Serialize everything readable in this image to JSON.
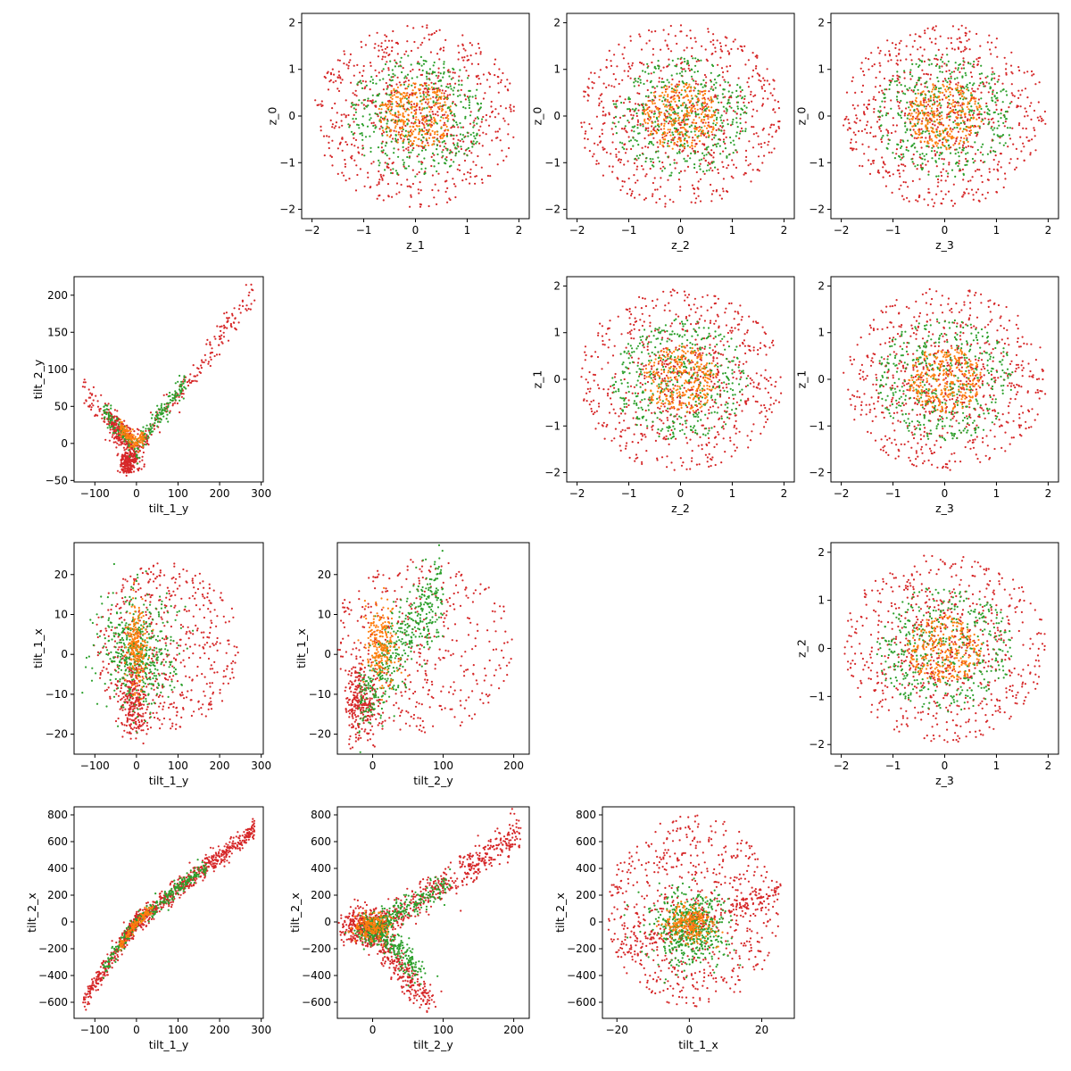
{
  "colors": {
    "inner": "#ff7f0e",
    "middle": "#2ca02c",
    "outer": "#d62728",
    "axes": "#000000",
    "background": "#ffffff"
  },
  "chart_data": [
    {
      "type": "scatter",
      "panel": "z_0 vs z_1",
      "xlabel": "z_1",
      "ylabel": "z_0",
      "kind": "rings",
      "seed": 11,
      "xlim": [
        -2.2,
        2.2
      ],
      "ylim": [
        -2.2,
        2.2
      ],
      "xticks": [
        -2,
        -1,
        0,
        1,
        2
      ],
      "yticks": [
        -2,
        -1,
        0,
        1,
        2
      ],
      "grid": false
    },
    {
      "type": "scatter",
      "panel": "z_0 vs z_2",
      "xlabel": "z_2",
      "ylabel": "z_0",
      "kind": "rings",
      "seed": 23,
      "xlim": [
        -2.2,
        2.2
      ],
      "ylim": [
        -2.2,
        2.2
      ],
      "xticks": [
        -2,
        -1,
        0,
        1,
        2
      ],
      "yticks": [
        -2,
        -1,
        0,
        1,
        2
      ],
      "grid": false
    },
    {
      "type": "scatter",
      "panel": "z_0 vs z_3",
      "xlabel": "z_3",
      "ylabel": "z_0",
      "kind": "rings",
      "seed": 37,
      "xlim": [
        -2.2,
        2.2
      ],
      "ylim": [
        -2.2,
        2.2
      ],
      "xticks": [
        -2,
        -1,
        0,
        1,
        2
      ],
      "yticks": [
        -2,
        -1,
        0,
        1,
        2
      ],
      "grid": false
    },
    {
      "type": "scatter",
      "panel": "tilt_2_y vs tilt_1_y",
      "xlabel": "tilt_1_y",
      "ylabel": "tilt_2_y",
      "kind": "vshape",
      "seed": 41,
      "xlim": [
        -150,
        305
      ],
      "ylim": [
        -52,
        225
      ],
      "xticks": [
        -100,
        0,
        100,
        200,
        300
      ],
      "yticks": [
        -50,
        0,
        50,
        100,
        150,
        200
      ],
      "grid": false
    },
    {
      "type": "scatter",
      "panel": "z_1 vs z_2",
      "xlabel": "z_2",
      "ylabel": "z_1",
      "kind": "rings",
      "seed": 53,
      "xlim": [
        -2.2,
        2.2
      ],
      "ylim": [
        -2.2,
        2.2
      ],
      "xticks": [
        -2,
        -1,
        0,
        1,
        2
      ],
      "yticks": [
        -2,
        -1,
        0,
        1,
        2
      ],
      "grid": false
    },
    {
      "type": "scatter",
      "panel": "z_1 vs z_3",
      "xlabel": "z_3",
      "ylabel": "z_1",
      "kind": "rings",
      "seed": 67,
      "xlim": [
        -2.2,
        2.2
      ],
      "ylim": [
        -2.2,
        2.2
      ],
      "xticks": [
        -2,
        -1,
        0,
        1,
        2
      ],
      "yticks": [
        -2,
        -1,
        0,
        1,
        2
      ],
      "grid": false
    },
    {
      "type": "scatter",
      "panel": "tilt_1_x vs tilt_1_y",
      "xlabel": "tilt_1_y",
      "ylabel": "tilt_1_x",
      "kind": "t1x_t1y",
      "seed": 71,
      "xlim": [
        -150,
        305
      ],
      "ylim": [
        -25,
        28
      ],
      "xticks": [
        -100,
        0,
        100,
        200,
        300
      ],
      "yticks": [
        -20,
        -10,
        0,
        10,
        20
      ],
      "grid": false
    },
    {
      "type": "scatter",
      "panel": "tilt_1_x vs tilt_2_y",
      "xlabel": "tilt_2_y",
      "ylabel": "tilt_1_x",
      "kind": "t1x_t2y",
      "seed": 83,
      "xlim": [
        -50,
        222
      ],
      "ylim": [
        -25,
        28
      ],
      "xticks": [
        0,
        100,
        200
      ],
      "yticks": [
        -20,
        -10,
        0,
        10,
        20
      ],
      "grid": false
    },
    {
      "type": "scatter",
      "panel": "z_2 vs z_3",
      "xlabel": "z_3",
      "ylabel": "z_2",
      "kind": "rings",
      "seed": 97,
      "xlim": [
        -2.2,
        2.2
      ],
      "ylim": [
        -2.2,
        2.2
      ],
      "xticks": [
        -2,
        -1,
        0,
        1,
        2
      ],
      "yticks": [
        -2,
        -1,
        0,
        1,
        2
      ],
      "grid": false
    },
    {
      "type": "scatter",
      "panel": "tilt_2_x vs tilt_1_y",
      "xlabel": "tilt_1_y",
      "ylabel": "tilt_2_x",
      "kind": "t2x_t1y",
      "seed": 101,
      "xlim": [
        -150,
        305
      ],
      "ylim": [
        -720,
        860
      ],
      "xticks": [
        -100,
        0,
        100,
        200,
        300
      ],
      "yticks": [
        -600,
        -400,
        -200,
        0,
        200,
        400,
        600,
        800
      ],
      "grid": false
    },
    {
      "type": "scatter",
      "panel": "tilt_2_x vs tilt_2_y",
      "xlabel": "tilt_2_y",
      "ylabel": "tilt_2_x",
      "kind": "t2x_t2y",
      "seed": 113,
      "xlim": [
        -50,
        222
      ],
      "ylim": [
        -720,
        860
      ],
      "xticks": [
        0,
        100,
        200
      ],
      "yticks": [
        -600,
        -400,
        -200,
        0,
        200,
        400,
        600,
        800
      ],
      "grid": false
    },
    {
      "type": "scatter",
      "panel": "tilt_2_x vs tilt_1_x",
      "xlabel": "tilt_1_x",
      "ylabel": "tilt_2_x",
      "kind": "t2x_t1x",
      "seed": 127,
      "xlim": [
        -24,
        29
      ],
      "ylim": [
        -720,
        860
      ],
      "xticks": [
        -20,
        0,
        20
      ],
      "yticks": [
        -600,
        -400,
        -200,
        0,
        200,
        400,
        600,
        800
      ],
      "grid": false
    }
  ]
}
